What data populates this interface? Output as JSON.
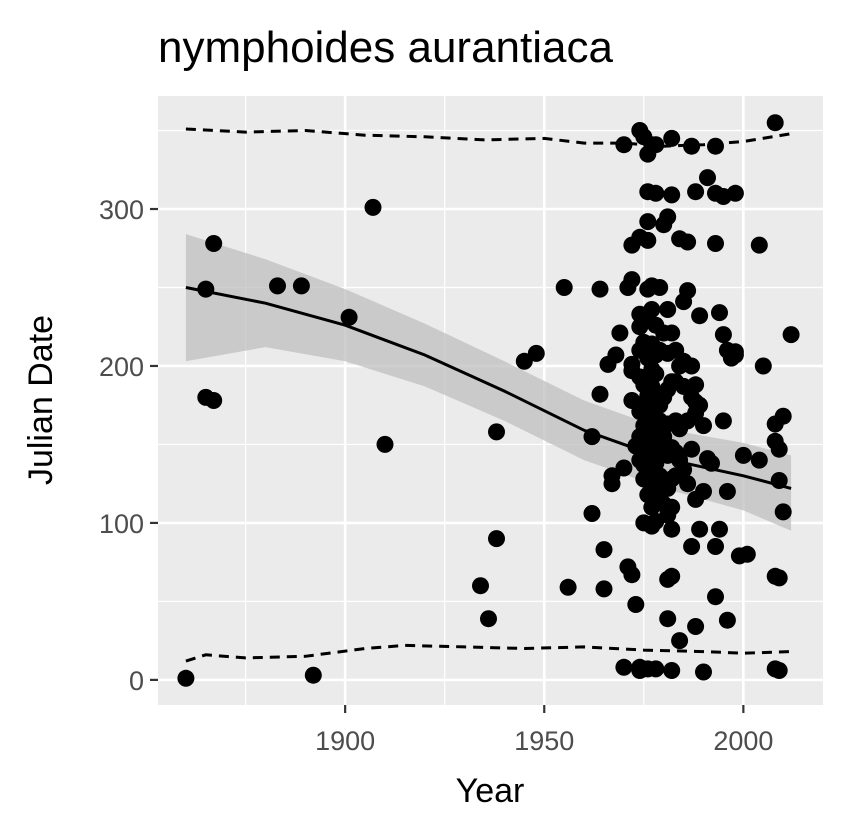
{
  "chart_data": {
    "type": "scatter",
    "title": "nymphoides aurantiaca",
    "xlabel": "Year",
    "ylabel": "Julian Date",
    "xlim": [
      1853,
      2020
    ],
    "ylim": [
      -16,
      372
    ],
    "x_ticks": [
      1900,
      1950,
      2000
    ],
    "y_ticks": [
      0,
      100,
      200,
      300
    ],
    "x_tick_labels": [
      "1900",
      "1950",
      "2000"
    ],
    "y_tick_labels": [
      "0",
      "100",
      "200",
      "300"
    ],
    "grid": true,
    "legend": "none",
    "colors": {
      "panel": "#ebebeb",
      "grid": "#ffffff",
      "point": "#000000",
      "band": "#bfbfbf",
      "text": "#000000",
      "tick": "#4d4d4d"
    },
    "points": [
      [
        1860,
        1
      ],
      [
        1865,
        249
      ],
      [
        1865,
        180
      ],
      [
        1867,
        178
      ],
      [
        1867,
        278
      ],
      [
        1883,
        251
      ],
      [
        1889,
        251
      ],
      [
        1892,
        3
      ],
      [
        1901,
        231
      ],
      [
        1907,
        301
      ],
      [
        1910,
        150
      ],
      [
        1934,
        60
      ],
      [
        1936,
        39
      ],
      [
        1938,
        158
      ],
      [
        1938,
        90
      ],
      [
        1945,
        203
      ],
      [
        1948,
        208
      ],
      [
        1955,
        250
      ],
      [
        1956,
        59
      ],
      [
        1962,
        155
      ],
      [
        1962,
        106
      ],
      [
        1964,
        182
      ],
      [
        1964,
        249
      ],
      [
        1965,
        83
      ],
      [
        1965,
        58
      ],
      [
        1966,
        201
      ],
      [
        1967,
        130
      ],
      [
        1967,
        125
      ],
      [
        1968,
        207
      ],
      [
        1969,
        221
      ],
      [
        1970,
        341
      ],
      [
        1970,
        135
      ],
      [
        1970,
        8
      ],
      [
        1971,
        250
      ],
      [
        1971,
        72
      ],
      [
        1972,
        277
      ],
      [
        1972,
        255
      ],
      [
        1972,
        201
      ],
      [
        1972,
        197
      ],
      [
        1972,
        178
      ],
      [
        1972,
        67
      ],
      [
        1973,
        149
      ],
      [
        1973,
        48
      ],
      [
        1974,
        350
      ],
      [
        1974,
        282
      ],
      [
        1974,
        233
      ],
      [
        1974,
        225
      ],
      [
        1974,
        210
      ],
      [
        1974,
        193
      ],
      [
        1974,
        171
      ],
      [
        1974,
        155
      ],
      [
        1974,
        140
      ],
      [
        1974,
        8
      ],
      [
        1974,
        6
      ],
      [
        1975,
        346
      ],
      [
        1975,
        232
      ],
      [
        1975,
        215
      ],
      [
        1975,
        188
      ],
      [
        1975,
        162
      ],
      [
        1975,
        147
      ],
      [
        1975,
        137
      ],
      [
        1975,
        128
      ],
      [
        1975,
        100
      ],
      [
        1976,
        335
      ],
      [
        1976,
        311
      ],
      [
        1976,
        292
      ],
      [
        1976,
        280
      ],
      [
        1976,
        249
      ],
      [
        1976,
        205
      ],
      [
        1976,
        181
      ],
      [
        1976,
        177
      ],
      [
        1976,
        172
      ],
      [
        1976,
        158
      ],
      [
        1976,
        152
      ],
      [
        1976,
        145
      ],
      [
        1976,
        133
      ],
      [
        1976,
        118
      ],
      [
        1976,
        7
      ],
      [
        1977,
        341
      ],
      [
        1977,
        251
      ],
      [
        1977,
        236
      ],
      [
        1977,
        214
      ],
      [
        1977,
        198
      ],
      [
        1977,
        187
      ],
      [
        1977,
        166
      ],
      [
        1977,
        154
      ],
      [
        1977,
        148
      ],
      [
        1977,
        140
      ],
      [
        1977,
        129
      ],
      [
        1977,
        110
      ],
      [
        1977,
        98
      ],
      [
        1978,
        341
      ],
      [
        1978,
        310
      ],
      [
        1978,
        226
      ],
      [
        1978,
        207
      ],
      [
        1978,
        195
      ],
      [
        1978,
        181
      ],
      [
        1978,
        160
      ],
      [
        1978,
        150
      ],
      [
        1978,
        138
      ],
      [
        1978,
        124
      ],
      [
        1978,
        101
      ],
      [
        1978,
        7
      ],
      [
        1979,
        250
      ],
      [
        1979,
        210
      ],
      [
        1979,
        175
      ],
      [
        1979,
        165
      ],
      [
        1979,
        145
      ],
      [
        1979,
        130
      ],
      [
        1979,
        115
      ],
      [
        1980,
        221
      ],
      [
        1980,
        180
      ],
      [
        1980,
        155
      ],
      [
        1980,
        145
      ],
      [
        1980,
        125
      ],
      [
        1980,
        112
      ],
      [
        1980,
        290
      ],
      [
        1981,
        295
      ],
      [
        1981,
        236
      ],
      [
        1981,
        208
      ],
      [
        1981,
        185
      ],
      [
        1981,
        163
      ],
      [
        1981,
        143
      ],
      [
        1981,
        122
      ],
      [
        1981,
        105
      ],
      [
        1981,
        64
      ],
      [
        1981,
        39
      ],
      [
        1982,
        345
      ],
      [
        1982,
        309
      ],
      [
        1982,
        221
      ],
      [
        1982,
        190
      ],
      [
        1982,
        148
      ],
      [
        1982,
        128
      ],
      [
        1982,
        110
      ],
      [
        1982,
        96
      ],
      [
        1982,
        66
      ],
      [
        1982,
        6
      ],
      [
        1983,
        210
      ],
      [
        1983,
        190
      ],
      [
        1983,
        165
      ],
      [
        1983,
        145
      ],
      [
        1983,
        130
      ],
      [
        1984,
        281
      ],
      [
        1984,
        200
      ],
      [
        1984,
        160
      ],
      [
        1984,
        140
      ],
      [
        1984,
        25
      ],
      [
        1985,
        241
      ],
      [
        1985,
        203
      ],
      [
        1985,
        187
      ],
      [
        1985,
        134
      ],
      [
        1986,
        279
      ],
      [
        1986,
        248
      ],
      [
        1986,
        165
      ],
      [
        1986,
        125
      ],
      [
        1987,
        340
      ],
      [
        1987,
        200
      ],
      [
        1987,
        180
      ],
      [
        1987,
        147
      ],
      [
        1987,
        85
      ],
      [
        1988,
        311
      ],
      [
        1988,
        188
      ],
      [
        1988,
        177
      ],
      [
        1988,
        170
      ],
      [
        1988,
        115
      ],
      [
        1988,
        34
      ],
      [
        1989,
        232
      ],
      [
        1989,
        175
      ],
      [
        1989,
        96
      ],
      [
        1990,
        162
      ],
      [
        1990,
        120
      ],
      [
        1990,
        5
      ],
      [
        1991,
        320
      ],
      [
        1991,
        141
      ],
      [
        1992,
        138
      ],
      [
        1993,
        340
      ],
      [
        1993,
        310
      ],
      [
        1993,
        278
      ],
      [
        1993,
        85
      ],
      [
        1993,
        53
      ],
      [
        1994,
        234
      ],
      [
        1994,
        96
      ],
      [
        1995,
        308
      ],
      [
        1995,
        220
      ],
      [
        1995,
        165
      ],
      [
        1996,
        210
      ],
      [
        1996,
        120
      ],
      [
        1996,
        38
      ],
      [
        1997,
        205
      ],
      [
        1998,
        310
      ],
      [
        1998,
        209
      ],
      [
        1998,
        207
      ],
      [
        1999,
        79
      ],
      [
        2000,
        143
      ],
      [
        2001,
        80
      ],
      [
        2004,
        277
      ],
      [
        2004,
        140
      ],
      [
        2005,
        200
      ],
      [
        2008,
        355
      ],
      [
        2008,
        163
      ],
      [
        2008,
        152
      ],
      [
        2008,
        66
      ],
      [
        2008,
        7
      ],
      [
        2009,
        127
      ],
      [
        2009,
        147
      ],
      [
        2009,
        65
      ],
      [
        2009,
        6
      ],
      [
        2010,
        168
      ],
      [
        2010,
        107
      ],
      [
        2012,
        220
      ]
    ],
    "fit_line": [
      [
        1860,
        250
      ],
      [
        1880,
        240
      ],
      [
        1900,
        226
      ],
      [
        1920,
        207
      ],
      [
        1940,
        184
      ],
      [
        1960,
        159
      ],
      [
        1980,
        141
      ],
      [
        2000,
        130
      ],
      [
        2012,
        122
      ]
    ],
    "fit_band_upper": [
      [
        1860,
        284
      ],
      [
        1880,
        268
      ],
      [
        1900,
        249
      ],
      [
        1920,
        227
      ],
      [
        1940,
        203
      ],
      [
        1960,
        178
      ],
      [
        1980,
        160
      ],
      [
        2000,
        151
      ],
      [
        2012,
        143
      ]
    ],
    "fit_band_lower": [
      [
        1860,
        203
      ],
      [
        1880,
        212
      ],
      [
        1900,
        203
      ],
      [
        1920,
        187
      ],
      [
        1940,
        165
      ],
      [
        1960,
        140
      ],
      [
        1980,
        122
      ],
      [
        2000,
        108
      ],
      [
        2012,
        95
      ]
    ],
    "upper_dashed": [
      [
        1860,
        351
      ],
      [
        1875,
        349
      ],
      [
        1890,
        350
      ],
      [
        1905,
        347
      ],
      [
        1920,
        346
      ],
      [
        1935,
        344
      ],
      [
        1950,
        345
      ],
      [
        1960,
        342
      ],
      [
        1970,
        342
      ],
      [
        1980,
        340
      ],
      [
        1990,
        341
      ],
      [
        2000,
        343
      ],
      [
        2012,
        348
      ]
    ],
    "lower_dashed": [
      [
        1860,
        12
      ],
      [
        1865,
        16
      ],
      [
        1875,
        14
      ],
      [
        1890,
        15
      ],
      [
        1905,
        20
      ],
      [
        1915,
        22
      ],
      [
        1930,
        21
      ],
      [
        1945,
        20
      ],
      [
        1960,
        21
      ],
      [
        1975,
        19
      ],
      [
        1990,
        18
      ],
      [
        2000,
        17
      ],
      [
        2012,
        18
      ]
    ]
  }
}
